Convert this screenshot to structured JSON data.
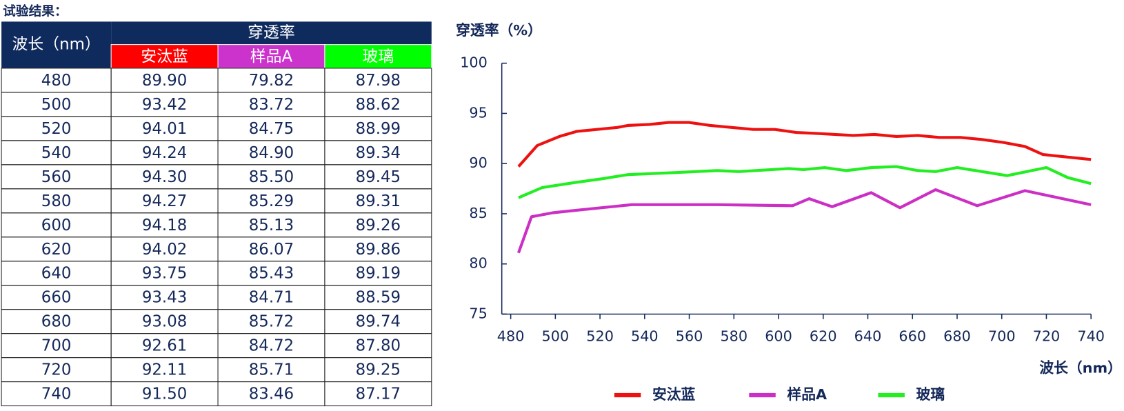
{
  "heading": "试验结果：",
  "table": {
    "wavelength_header": "波长（nm）",
    "group_header": "穿透率",
    "header_color": "#0f2b5e",
    "columns": [
      {
        "name": "安汰蓝",
        "color": "#ff0000"
      },
      {
        "name": "样品A",
        "color": "#cc33cc"
      },
      {
        "name": "玻璃",
        "color": "#00ff00"
      }
    ],
    "rows": [
      [
        "480",
        "89.90",
        "79.82",
        "87.98"
      ],
      [
        "500",
        "93.42",
        "83.72",
        "88.62"
      ],
      [
        "520",
        "94.01",
        "84.75",
        "88.99"
      ],
      [
        "540",
        "94.24",
        "84.90",
        "89.34"
      ],
      [
        "560",
        "94.30",
        "85.50",
        "89.45"
      ],
      [
        "580",
        "94.27",
        "85.29",
        "89.31"
      ],
      [
        "600",
        "94.18",
        "85.13",
        "89.26"
      ],
      [
        "620",
        "94.02",
        "86.07",
        "89.86"
      ],
      [
        "640",
        "93.75",
        "85.43",
        "89.19"
      ],
      [
        "660",
        "93.43",
        "84.71",
        "88.59"
      ],
      [
        "680",
        "93.08",
        "85.72",
        "89.74"
      ],
      [
        "700",
        "92.61",
        "84.72",
        "87.80"
      ],
      [
        "720",
        "92.11",
        "85.71",
        "89.25"
      ],
      [
        "740",
        "91.50",
        "83.46",
        "87.17"
      ]
    ]
  },
  "chart_data": {
    "type": "line",
    "y_label": "穿透率（%）",
    "x_label": "波长（nm）",
    "xlim": [
      476,
      740
    ],
    "ylim": [
      75,
      100
    ],
    "xticks": [
      480,
      500,
      520,
      540,
      560,
      580,
      600,
      620,
      640,
      660,
      680,
      700,
      720,
      740
    ],
    "yticks": [
      75,
      80,
      85,
      90,
      95,
      100
    ],
    "series": [
      {
        "name": "安汰蓝",
        "color": "#ee1111",
        "x": [
          483.5,
          491.9,
          501.8,
          509.5,
          527.8,
          532.6,
          542.2,
          550.8,
          559.8,
          569.4,
          579,
          588.7,
          598.3,
          607.9,
          617.5,
          633.5,
          643.1,
          652.8,
          662.4,
          672,
          681.6,
          691.2,
          700.8,
          710.4,
          718.5,
          740
        ],
        "values": [
          89.7,
          91.8,
          92.7,
          93.2,
          93.6,
          93.8,
          93.9,
          94.1,
          94.1,
          93.8,
          93.6,
          93.4,
          93.4,
          93.1,
          93.0,
          92.8,
          92.9,
          92.7,
          92.8,
          92.6,
          92.6,
          92.4,
          92.1,
          91.7,
          90.9,
          90.4
        ]
      },
      {
        "name": "样品A",
        "color": "#cc2fc4",
        "x": [
          483.5,
          489.3,
          498.9,
          511.7,
          534.2,
          572.6,
          606.3,
          613.7,
          624,
          641.5,
          654.4,
          670.4,
          689,
          710.4,
          740
        ],
        "values": [
          81.1,
          84.7,
          85.1,
          85.4,
          85.9,
          85.9,
          85.8,
          86.5,
          85.7,
          87.1,
          85.6,
          87.4,
          85.8,
          87.3,
          85.9
        ]
      },
      {
        "name": "玻璃",
        "color": "#22ee22",
        "x": [
          483.5,
          494,
          508.5,
          521.3,
          532.6,
          553.4,
          572.6,
          582.2,
          604.7,
          611.1,
          620.7,
          630.3,
          641.5,
          652.8,
          662.4,
          670.4,
          680,
          702.4,
          720,
          729.6,
          740
        ],
        "values": [
          86.6,
          87.6,
          88.1,
          88.5,
          88.9,
          89.1,
          89.3,
          89.2,
          89.5,
          89.4,
          89.6,
          89.3,
          89.6,
          89.7,
          89.3,
          89.2,
          89.6,
          88.8,
          89.6,
          88.6,
          88.0
        ]
      }
    ]
  }
}
